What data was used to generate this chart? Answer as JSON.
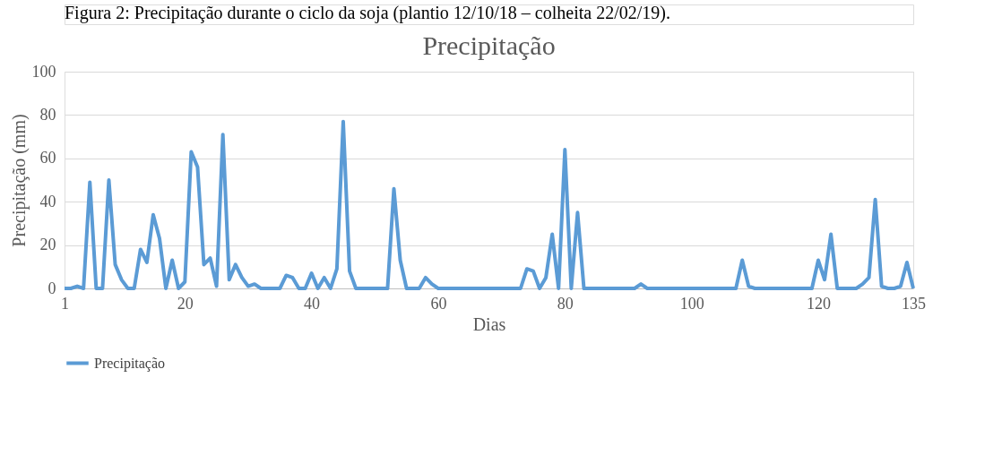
{
  "chart_data": {
    "type": "line",
    "title": "Precipitação",
    "xlabel": "Dias",
    "ylabel": "Precipitação (mm)",
    "annotations": [
      "Figura 2: Precipitação durante o ciclo da soja (plantio 12/10/18 – colheita 22/02/19)."
    ],
    "x": [
      1,
      2,
      3,
      4,
      5,
      6,
      7,
      8,
      9,
      10,
      11,
      12,
      13,
      14,
      15,
      16,
      17,
      18,
      19,
      20,
      21,
      22,
      23,
      24,
      25,
      26,
      27,
      28,
      29,
      30,
      31,
      32,
      33,
      34,
      35,
      36,
      37,
      38,
      39,
      40,
      41,
      42,
      43,
      44,
      45,
      46,
      47,
      48,
      49,
      50,
      51,
      52,
      53,
      54,
      55,
      56,
      57,
      58,
      59,
      60,
      61,
      62,
      63,
      64,
      65,
      66,
      67,
      68,
      69,
      70,
      71,
      72,
      73,
      74,
      75,
      76,
      77,
      78,
      79,
      80,
      81,
      82,
      83,
      84,
      85,
      86,
      87,
      88,
      89,
      90,
      91,
      92,
      93,
      94,
      95,
      96,
      97,
      98,
      99,
      100,
      101,
      102,
      103,
      104,
      105,
      106,
      107,
      108,
      109,
      110,
      111,
      112,
      113,
      114,
      115,
      116,
      117,
      118,
      119,
      120,
      121,
      122,
      123,
      124,
      125,
      126,
      127,
      128,
      129,
      130,
      131,
      132,
      133,
      134,
      135
    ],
    "series": [
      {
        "name": "Precipitação",
        "color": "#5b9bd5",
        "values": [
          0,
          0,
          1,
          0,
          49,
          0,
          0,
          50,
          11,
          4,
          0,
          0,
          18,
          12,
          34,
          23,
          0,
          13,
          0,
          3,
          63,
          56,
          11,
          14,
          1,
          71,
          4,
          11,
          5,
          1,
          2,
          0,
          0,
          0,
          0,
          6,
          5,
          0,
          0,
          7,
          0,
          5,
          0,
          9,
          77,
          8,
          0,
          0,
          0,
          0,
          0,
          0,
          46,
          13,
          0,
          0,
          0,
          5,
          2,
          0,
          0,
          0,
          0,
          0,
          0,
          0,
          0,
          0,
          0,
          0,
          0,
          0,
          0,
          9,
          8,
          0,
          5,
          25,
          0,
          64,
          0,
          35,
          0,
          0,
          0,
          0,
          0,
          0,
          0,
          0,
          0,
          2,
          0,
          0,
          0,
          0,
          0,
          0,
          0,
          0,
          0,
          0,
          0,
          0,
          0,
          0,
          0,
          13,
          1,
          0,
          0,
          0,
          0,
          0,
          0,
          0,
          0,
          0,
          0,
          13,
          4,
          25,
          0,
          0,
          0,
          0,
          2,
          5,
          41,
          1,
          0,
          0,
          1,
          12,
          0
        ]
      }
    ],
    "xlim": [
      1,
      135
    ],
    "xticks": [
      1,
      20,
      40,
      60,
      80,
      100,
      120,
      135
    ],
    "ylim": [
      0,
      100
    ],
    "yticks": [
      0,
      20,
      40,
      60,
      80,
      100
    ],
    "grid": "y",
    "legend": "bottom",
    "line_style": "solid",
    "marker": "none"
  }
}
